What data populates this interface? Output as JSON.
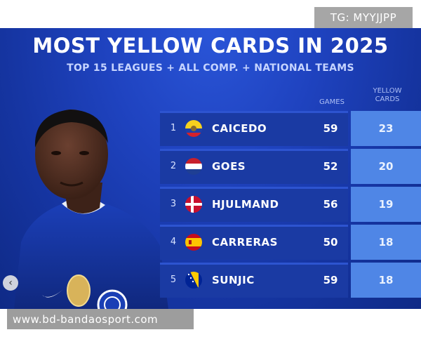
{
  "watermark_top": "TG: MYYJJPP",
  "watermark_bottom": "www.bd-bandaosport.com",
  "title": "MOST YELLOW CARDS IN 2025",
  "subtitle": "TOP 15 LEAGUES + ALL COMP. + NATIONAL TEAMS",
  "columns": {
    "games": "GAMES",
    "yellow_line1": "YELLOW",
    "yellow_line2": "CARDS"
  },
  "rows": [
    {
      "rank": "1",
      "name": "CAICEDO",
      "games": "59",
      "cards": "23",
      "flag": "ecuador-flag-icon"
    },
    {
      "rank": "2",
      "name": "GOES",
      "games": "52",
      "cards": "20",
      "flag": "netherlands-flag-icon"
    },
    {
      "rank": "3",
      "name": "HJULMAND",
      "games": "56",
      "cards": "19",
      "flag": "denmark-flag-icon"
    },
    {
      "rank": "4",
      "name": "CARRERAS",
      "games": "50",
      "cards": "18",
      "flag": "spain-flag-icon"
    },
    {
      "rank": "5",
      "name": "SUNJIC",
      "games": "59",
      "cards": "18",
      "flag": "bosnia-flag-icon"
    }
  ],
  "colors": {
    "background": "#1f43c0",
    "row": "#1a3aa3",
    "yellow_cell": "#4f86e6"
  },
  "carousel_prev_icon": "chevron-left-icon"
}
